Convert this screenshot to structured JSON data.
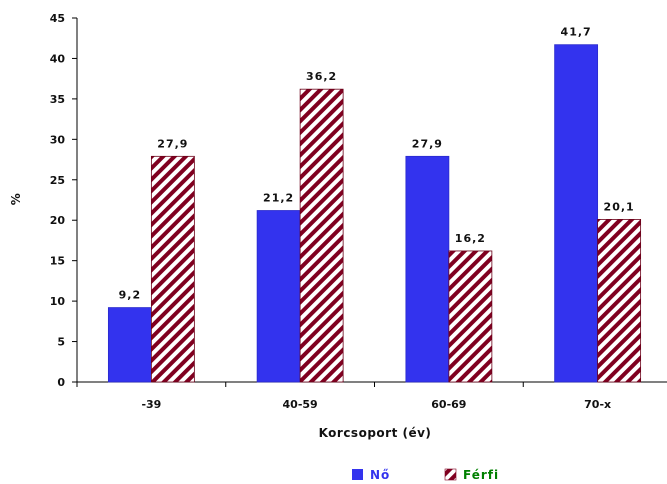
{
  "chart_data": {
    "type": "bar",
    "categories": [
      "-39",
      "40-59",
      "60-69",
      "70-x"
    ],
    "series": [
      {
        "name": "Nő",
        "values": [
          9.2,
          21.2,
          27.9,
          41.7
        ],
        "value_labels": [
          "9,2",
          "21,2",
          "27,9",
          "41,7"
        ],
        "color": "#3333ee",
        "pattern": "solid"
      },
      {
        "name": "Férfi",
        "values": [
          27.9,
          36.2,
          16.2,
          20.1
        ],
        "value_labels": [
          "27,9",
          "36,2",
          "16,2",
          "20,1"
        ],
        "color": "#800020",
        "pattern": "diagonal-hatch"
      }
    ],
    "y_ticks": [
      0,
      5,
      10,
      15,
      20,
      25,
      30,
      35,
      40,
      45
    ],
    "ylim": [
      0,
      45
    ],
    "xlabel": "Korcsoport (év)",
    "ylabel": "%",
    "grid": false,
    "legend_position": "bottom-center"
  }
}
